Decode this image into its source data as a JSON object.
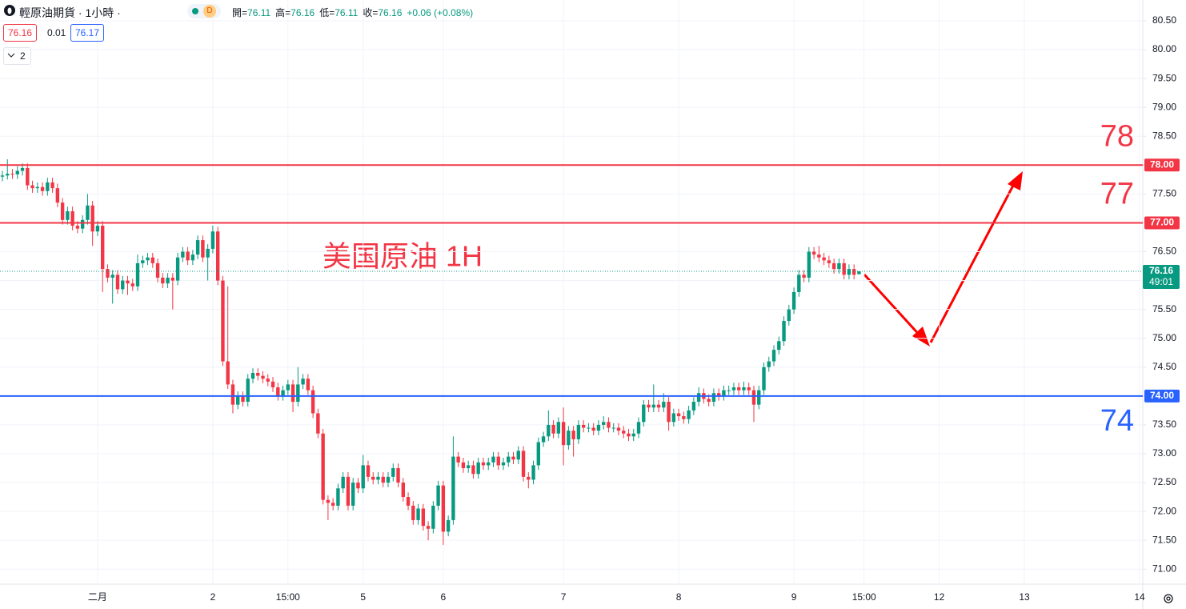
{
  "toolbar": {
    "symbol": "輕原油期貨 · 1小時 ·",
    "badge": "D",
    "fields": [
      {
        "label": "開=",
        "value": "76.11"
      },
      {
        "label": "高=",
        "value": "76.16"
      },
      {
        "label": "低=",
        "value": "76.11"
      },
      {
        "label": "收=",
        "value": "76.16"
      }
    ],
    "change": "+0.06 (+0.08%)",
    "sell": "76.16",
    "spread": "0.01",
    "buy": "76.17",
    "indicators": "2"
  },
  "chart_data": {
    "type": "candlestick",
    "title": "美国原油 1H",
    "up_color": "#089981",
    "down_color": "#f23645",
    "categories": [
      null,
      null,
      null,
      null,
      null,
      null,
      null,
      null,
      null,
      null,
      null,
      null,
      null,
      null,
      null,
      null,
      null,
      null,
      null,
      "二月",
      null,
      null,
      null,
      null,
      null,
      null,
      null,
      null,
      null,
      null,
      null,
      null,
      null,
      null,
      null,
      null,
      null,
      null,
      null,
      null,
      null,
      null,
      "2",
      null,
      null,
      null,
      null,
      null,
      null,
      null,
      null,
      null,
      null,
      null,
      null,
      null,
      null,
      "15:00",
      null,
      null,
      null,
      null,
      null,
      null,
      null,
      null,
      null,
      null,
      null,
      null,
      null,
      null,
      "5",
      null,
      null,
      null,
      null,
      null,
      null,
      null,
      null,
      null,
      null,
      null,
      null,
      null,
      null,
      null,
      "6",
      null,
      null,
      null,
      null,
      null,
      null,
      null,
      null,
      null,
      null,
      null,
      null,
      null,
      null,
      null,
      null,
      null,
      null,
      null,
      null,
      null,
      null,
      null,
      "7",
      null,
      null,
      null,
      null,
      null,
      null,
      null,
      null,
      null,
      null,
      null,
      null,
      null,
      null,
      null,
      null,
      null,
      null,
      null,
      null,
      null,
      null,
      "8",
      null,
      null,
      null,
      null,
      null,
      null,
      null,
      null,
      null,
      null,
      null,
      null,
      null,
      null,
      null,
      null,
      null,
      null,
      null,
      null,
      null,
      null,
      "9",
      null,
      null,
      null,
      null,
      null,
      null,
      null,
      null,
      null,
      null,
      null,
      null,
      null,
      "15:00",
      null,
      null,
      null,
      null,
      null,
      null,
      null,
      null,
      null,
      null,
      null,
      null,
      null,
      null,
      "12",
      null,
      null,
      null,
      null,
      null,
      null,
      null,
      null,
      null,
      null,
      null,
      null,
      null,
      null,
      null,
      null,
      "13",
      null,
      null,
      null,
      null,
      null,
      null,
      null,
      null,
      null,
      null,
      null,
      null,
      null,
      null,
      null,
      null,
      null,
      null,
      null,
      null,
      null,
      null,
      "14"
    ],
    "open": [
      77.8,
      77.82,
      77.85,
      77.84,
      77.9,
      77.95,
      77.65,
      77.6,
      77.62,
      77.55,
      77.7,
      77.6,
      77.35,
      77.05,
      77.2,
      76.95,
      76.9,
      77.05,
      77.3,
      76.85,
      76.95,
      76.2,
      76.05,
      76.1,
      75.85,
      76.0,
      75.95,
      75.9,
      76.3,
      76.35,
      76.4,
      76.3,
      76.05,
      75.95,
      76.05,
      76.0,
      76.4,
      76.5,
      76.35,
      76.45,
      76.7,
      76.4,
      76.55,
      76.85,
      76.0,
      74.6,
      74.2,
      73.85,
      74.0,
      73.9,
      74.3,
      74.4,
      74.35,
      74.3,
      74.25,
      74.15,
      74.0,
      74.1,
      74.2,
      73.9,
      74.2,
      74.3,
      74.1,
      73.7,
      73.35,
      72.2,
      72.15,
      72.1,
      72.4,
      72.6,
      72.1,
      72.5,
      72.4,
      72.8,
      72.6,
      72.55,
      72.6,
      72.5,
      72.6,
      72.75,
      72.5,
      72.25,
      72.1,
      71.85,
      72.05,
      71.75,
      71.7,
      72.1,
      72.45,
      71.65,
      71.85,
      72.95,
      72.85,
      72.75,
      72.8,
      72.65,
      72.85,
      72.8,
      72.85,
      72.95,
      72.8,
      72.85,
      72.95,
      72.9,
      73.05,
      72.6,
      72.55,
      72.8,
      73.2,
      73.3,
      73.5,
      73.35,
      73.55,
      73.15,
      73.4,
      73.25,
      73.5,
      73.45,
      73.45,
      73.4,
      73.5,
      73.55,
      73.45,
      73.45,
      73.4,
      73.35,
      73.3,
      73.35,
      73.55,
      73.85,
      73.8,
      73.85,
      73.8,
      73.9,
      73.55,
      73.7,
      73.65,
      73.6,
      73.75,
      73.9,
      74.05,
      73.95,
      73.9,
      74.05,
      74.0,
      74.1,
      74.1,
      74.15,
      74.1,
      74.15,
      74.1,
      73.85,
      74.1,
      74.5,
      74.6,
      74.8,
      74.95,
      75.3,
      75.5,
      75.8,
      76.1,
      76.05,
      76.5,
      76.45,
      76.4,
      76.35,
      76.3,
      76.2,
      76.3,
      76.1,
      76.2,
      76.11,
      null,
      null,
      null,
      null,
      null,
      null,
      null,
      null,
      null,
      null,
      null,
      null,
      null,
      null,
      null,
      null,
      null,
      null,
      null,
      null,
      null,
      null,
      null,
      null,
      null,
      null,
      null,
      null,
      null,
      null,
      null,
      null,
      null,
      null,
      null,
      null,
      null,
      null,
      null,
      null,
      null,
      null,
      null,
      null,
      null,
      null,
      null,
      null,
      null,
      null,
      null,
      null,
      null,
      null,
      null,
      null
    ],
    "high": [
      77.9,
      78.1,
      77.93,
      77.98,
      78.03,
      78.03,
      77.73,
      77.7,
      77.7,
      77.78,
      77.78,
      77.68,
      77.43,
      77.28,
      77.28,
      77.03,
      77.13,
      77.5,
      77.38,
      77.03,
      77.03,
      76.28,
      76.18,
      76.18,
      76.08,
      76.08,
      76.03,
      76.45,
      76.43,
      76.48,
      76.48,
      76.38,
      76.13,
      76.13,
      76.13,
      76.48,
      76.58,
      76.58,
      76.53,
      76.78,
      76.78,
      76.63,
      76.95,
      76.93,
      76.08,
      75.9,
      74.28,
      74.08,
      74.08,
      74.38,
      74.48,
      74.48,
      74.43,
      74.38,
      74.33,
      74.23,
      74.18,
      74.28,
      74.28,
      74.5,
      74.38,
      74.38,
      74.18,
      73.78,
      73.43,
      72.28,
      72.23,
      72.48,
      72.68,
      72.68,
      72.58,
      72.58,
      72.98,
      72.88,
      72.68,
      72.68,
      72.68,
      72.68,
      72.83,
      72.83,
      72.58,
      72.33,
      72.18,
      72.13,
      72.13,
      71.83,
      72.18,
      72.53,
      72.53,
      71.93,
      73.3,
      73.03,
      72.93,
      72.88,
      72.88,
      72.93,
      72.93,
      72.93,
      73.03,
      73.03,
      72.93,
      73.03,
      73.03,
      73.13,
      73.13,
      72.68,
      72.88,
      73.28,
      73.38,
      73.75,
      73.58,
      73.63,
      73.8,
      73.48,
      73.48,
      73.58,
      73.58,
      73.53,
      73.53,
      73.58,
      73.65,
      73.63,
      73.53,
      73.53,
      73.48,
      73.43,
      73.43,
      73.63,
      73.93,
      73.93,
      74.2,
      73.93,
      74.05,
      73.98,
      73.78,
      73.78,
      73.73,
      73.83,
      73.98,
      74.15,
      74.13,
      74.03,
      74.13,
      74.13,
      74.18,
      74.18,
      74.23,
      74.23,
      74.25,
      74.23,
      74.18,
      74.18,
      74.58,
      74.68,
      74.88,
      75.03,
      75.38,
      75.58,
      75.88,
      76.18,
      76.18,
      76.58,
      76.58,
      76.6,
      76.48,
      76.43,
      76.38,
      76.38,
      76.38,
      76.28,
      76.28,
      76.16,
      null,
      null,
      null,
      null,
      null,
      null,
      null,
      null,
      null,
      null,
      null,
      null,
      null,
      null,
      null,
      null,
      null,
      null,
      null,
      null,
      null,
      null,
      null,
      null,
      null,
      null,
      null,
      null,
      null,
      null,
      null,
      null,
      null,
      null,
      null,
      null,
      null,
      null,
      null,
      null,
      null,
      null,
      null,
      null,
      null,
      null,
      null,
      null,
      null,
      null,
      null,
      null,
      null,
      null,
      null,
      null
    ],
    "low": [
      77.72,
      77.75,
      77.76,
      77.76,
      77.82,
      77.57,
      77.52,
      77.52,
      77.47,
      77.47,
      77.52,
      77.27,
      76.97,
      76.97,
      76.87,
      76.82,
      76.82,
      76.97,
      76.6,
      76.77,
      75.8,
      75.97,
      75.6,
      75.77,
      75.77,
      75.75,
      75.82,
      75.82,
      76.22,
      76.27,
      76.22,
      75.97,
      75.87,
      75.87,
      75.5,
      75.92,
      76.32,
      76.27,
      76.27,
      76.37,
      76.32,
      76.0,
      76.47,
      75.92,
      74.52,
      74.12,
      73.7,
      73.77,
      73.82,
      73.82,
      74.22,
      74.27,
      74.22,
      74.17,
      74.07,
      73.92,
      73.92,
      74.02,
      73.72,
      73.82,
      74.12,
      74.02,
      73.62,
      73.27,
      72.12,
      71.85,
      72.02,
      72.02,
      72.32,
      72.02,
      72.02,
      72.32,
      72.32,
      72.52,
      72.47,
      72.47,
      72.42,
      72.42,
      72.52,
      72.42,
      72.17,
      72.02,
      71.77,
      71.77,
      71.67,
      71.5,
      71.62,
      72.02,
      71.42,
      71.57,
      71.77,
      72.77,
      72.67,
      72.67,
      72.57,
      72.57,
      72.72,
      72.72,
      72.77,
      72.72,
      72.72,
      72.77,
      72.82,
      72.82,
      72.52,
      72.4,
      72.47,
      72.72,
      73.12,
      73.22,
      73.27,
      73.27,
      72.8,
      73.07,
      72.95,
      73.17,
      73.37,
      73.37,
      73.32,
      73.32,
      73.42,
      73.37,
      73.37,
      73.32,
      73.27,
      73.22,
      73.22,
      73.27,
      73.47,
      73.72,
      73.72,
      73.72,
      73.72,
      73.4,
      73.47,
      73.57,
      73.52,
      73.52,
      73.67,
      73.82,
      73.87,
      73.82,
      73.82,
      73.92,
      73.92,
      74.02,
      74.02,
      74.02,
      74.02,
      74.02,
      73.55,
      73.77,
      74.02,
      74.42,
      74.52,
      74.72,
      74.87,
      75.22,
      75.42,
      75.72,
      75.97,
      75.97,
      76.37,
      76.32,
      76.27,
      76.22,
      76.12,
      76.12,
      76.02,
      76.02,
      76.02,
      76.11,
      null,
      null,
      null,
      null,
      null,
      null,
      null,
      null,
      null,
      null,
      null,
      null,
      null,
      null,
      null,
      null,
      null,
      null,
      null,
      null,
      null,
      null,
      null,
      null,
      null,
      null,
      null,
      null,
      null,
      null,
      null,
      null,
      null,
      null,
      null,
      null,
      null,
      null,
      null,
      null,
      null,
      null,
      null,
      null,
      null,
      null,
      null,
      null,
      null,
      null,
      null,
      null,
      null,
      null,
      null,
      null
    ],
    "close": [
      77.82,
      77.85,
      77.84,
      77.9,
      77.95,
      77.65,
      77.6,
      77.62,
      77.55,
      77.7,
      77.6,
      77.35,
      77.05,
      77.2,
      76.95,
      76.9,
      77.05,
      77.3,
      76.85,
      76.95,
      76.2,
      76.05,
      76.1,
      75.85,
      76.0,
      75.95,
      75.9,
      76.3,
      76.35,
      76.4,
      76.3,
      76.05,
      75.95,
      76.05,
      76.0,
      76.4,
      76.5,
      76.35,
      76.45,
      76.7,
      76.4,
      76.55,
      76.85,
      76.0,
      74.6,
      74.2,
      73.85,
      74.0,
      73.9,
      74.3,
      74.4,
      74.35,
      74.3,
      74.25,
      74.15,
      74.0,
      74.1,
      74.2,
      73.9,
      74.2,
      74.3,
      74.1,
      73.7,
      73.35,
      72.2,
      72.15,
      72.1,
      72.4,
      72.6,
      72.1,
      72.5,
      72.4,
      72.8,
      72.6,
      72.55,
      72.6,
      72.5,
      72.6,
      72.75,
      72.5,
      72.25,
      72.1,
      71.85,
      72.05,
      71.75,
      71.7,
      72.1,
      72.45,
      71.65,
      71.85,
      72.95,
      72.85,
      72.75,
      72.8,
      72.65,
      72.85,
      72.8,
      72.85,
      72.95,
      72.8,
      72.85,
      72.95,
      72.9,
      73.05,
      72.6,
      72.55,
      72.8,
      73.2,
      73.3,
      73.5,
      73.35,
      73.55,
      73.15,
      73.4,
      73.25,
      73.5,
      73.45,
      73.45,
      73.4,
      73.5,
      73.55,
      73.45,
      73.45,
      73.4,
      73.35,
      73.3,
      73.35,
      73.55,
      73.85,
      73.8,
      73.85,
      73.8,
      73.9,
      73.55,
      73.7,
      73.65,
      73.6,
      73.75,
      73.9,
      74.05,
      73.95,
      73.9,
      74.05,
      74.0,
      74.1,
      74.1,
      74.15,
      74.1,
      74.15,
      74.1,
      73.85,
      74.1,
      74.5,
      74.6,
      74.8,
      74.95,
      75.3,
      75.5,
      75.8,
      76.1,
      76.05,
      76.5,
      76.45,
      76.4,
      76.35,
      76.3,
      76.2,
      76.3,
      76.1,
      76.2,
      76.1,
      76.16,
      null,
      null,
      null,
      null,
      null,
      null,
      null,
      null,
      null,
      null,
      null,
      null,
      null,
      null,
      null,
      null,
      null,
      null,
      null,
      null,
      null,
      null,
      null,
      null,
      null,
      null,
      null,
      null,
      null,
      null,
      null,
      null,
      null,
      null,
      null,
      null,
      null,
      null,
      null,
      null,
      null,
      null,
      null,
      null,
      null,
      null,
      null,
      null,
      null,
      null,
      null,
      null,
      null,
      null,
      null,
      null
    ],
    "ylim": [
      70.74,
      80.86
    ],
    "yticks": [
      {
        "value": 71,
        "label": "71.00"
      },
      {
        "value": 71.5,
        "label": "71.50"
      },
      {
        "value": 72,
        "label": "72.00"
      },
      {
        "value": 72.5,
        "label": "72.50"
      },
      {
        "value": 73,
        "label": "73.00"
      },
      {
        "value": 73.5,
        "label": "73.50"
      },
      {
        "value": 74,
        "label": "74.00"
      },
      {
        "value": 74.5,
        "label": "74.50"
      },
      {
        "value": 75,
        "label": "75.00"
      },
      {
        "value": 75.5,
        "label": "75.50"
      },
      {
        "value": 76,
        "label": "76.00"
      },
      {
        "value": 76.5,
        "label": "76.50"
      },
      {
        "value": 77,
        "label": "77.00"
      },
      {
        "value": 77.5,
        "label": "77.50"
      },
      {
        "value": 78,
        "label": "78.00"
      },
      {
        "value": 78.5,
        "label": "78.50"
      },
      {
        "value": 79,
        "label": "79.00"
      },
      {
        "value": 79.5,
        "label": "79.50"
      },
      {
        "value": 80,
        "label": "80.00"
      },
      {
        "value": 80.5,
        "label": "80.50"
      }
    ],
    "grid": true,
    "hlines": [
      {
        "value": 78,
        "label": "78.00",
        "color": "#f23645"
      },
      {
        "value": 77,
        "label": "77.00",
        "color": "#f23645"
      },
      {
        "value": 74,
        "label": "74.00",
        "color": "#2962ff"
      }
    ],
    "last_price": 76.16,
    "countdown": "49:01",
    "last_color": "#089981"
  }
}
